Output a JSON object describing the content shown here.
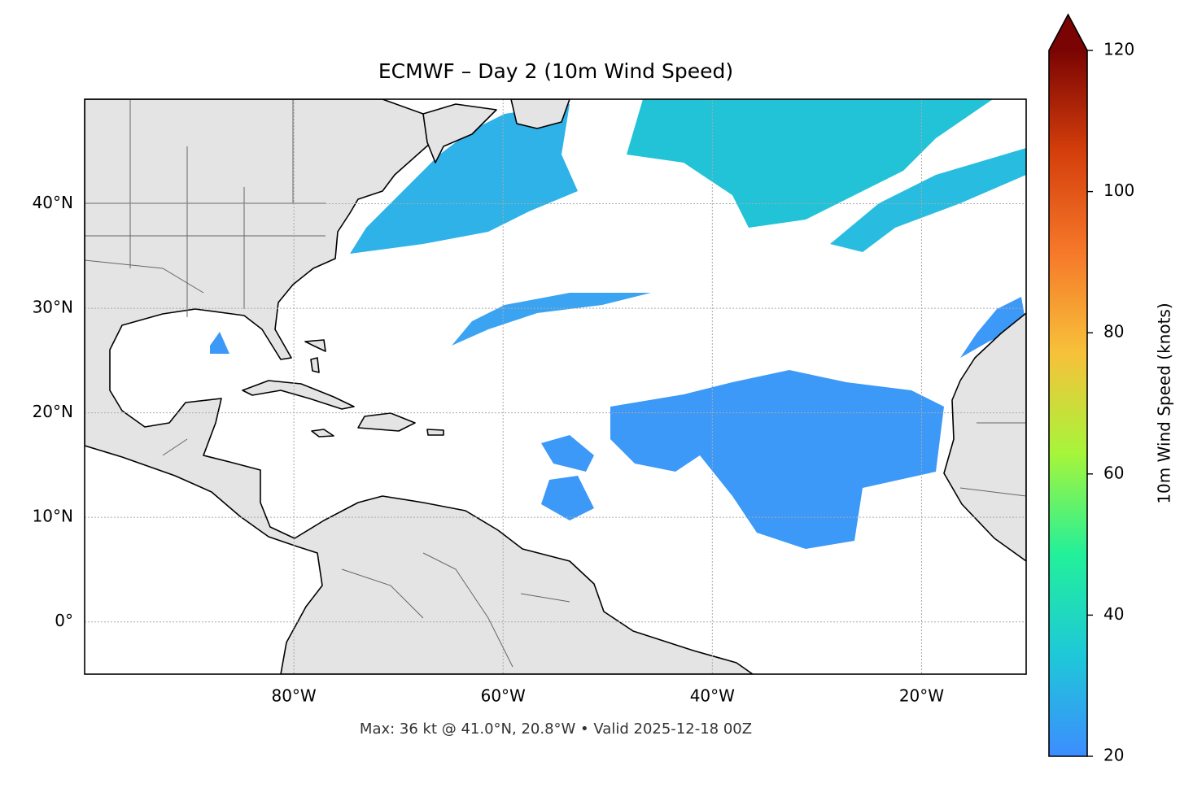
{
  "chart_data": {
    "type": "map",
    "title": "ECMWF – Day 2 (10m Wind Speed)",
    "footnote": "Max: 36 kt @ 41.0°N, 20.8°W • Valid 2025-12-18 00Z",
    "xlim": [
      -100,
      -10
    ],
    "ylim": [
      -5,
      50
    ],
    "xticks": [
      {
        "value": -80,
        "label": "80°W"
      },
      {
        "value": -60,
        "label": "60°W"
      },
      {
        "value": -40,
        "label": "40°W"
      },
      {
        "value": -20,
        "label": "20°W"
      }
    ],
    "yticks": [
      {
        "value": 0,
        "label": "0°"
      },
      {
        "value": 10,
        "label": "10°N"
      },
      {
        "value": 20,
        "label": "20°N"
      },
      {
        "value": 30,
        "label": "30°N"
      },
      {
        "value": 40,
        "label": "40°N"
      }
    ],
    "grid": true,
    "colorbar": {
      "label": "10m Wind Speed (knots)",
      "lim": [
        20,
        120
      ],
      "ticks": [
        20,
        40,
        60,
        80,
        100,
        120
      ],
      "extend": "max",
      "colormap": [
        "#3d8dff",
        "#1ec8d8",
        "#22f09a",
        "#a6f53a",
        "#f7c13a",
        "#f6782a",
        "#d43e0b",
        "#7a0403"
      ]
    }
  }
}
